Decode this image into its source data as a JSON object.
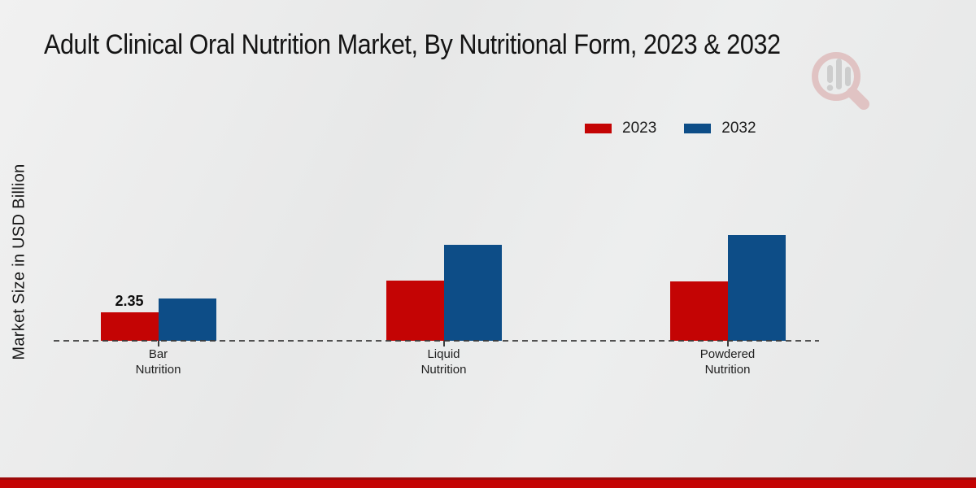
{
  "header": {
    "title": "Adult Clinical Oral Nutrition Market, By Nutritional Form, 2023 & 2032"
  },
  "watermark": {
    "icon": "magnifier-bar-chart-logo",
    "ring_color": "#d79c9c",
    "bars_color": "#b0b0b0"
  },
  "legend": {
    "items": [
      {
        "label": "2023",
        "color": "#c40404"
      },
      {
        "label": "2032",
        "color": "#0d4d87"
      }
    ]
  },
  "chart_data": {
    "type": "bar",
    "title": "Adult Clinical Oral Nutrition Market, By Nutritional Form, 2023 & 2032",
    "xlabel": "",
    "ylabel": "Market Size in USD Billion",
    "categories": [
      "Bar Nutrition",
      "Liquid Nutrition",
      "Powdered Nutrition"
    ],
    "series": [
      {
        "name": "2023",
        "color": "#c40404",
        "values": [
          2.35,
          5.0,
          4.9
        ],
        "labels": [
          "2.35",
          "",
          ""
        ]
      },
      {
        "name": "2032",
        "color": "#0d4d87",
        "values": [
          3.5,
          7.9,
          8.7
        ],
        "labels": [
          "",
          "",
          ""
        ]
      }
    ],
    "ylim": [
      0,
      9.5
    ],
    "grid": false,
    "legend_position": "top-right",
    "baseline_style": "dashed"
  },
  "footer": {
    "stripe_color": "#c40404"
  }
}
